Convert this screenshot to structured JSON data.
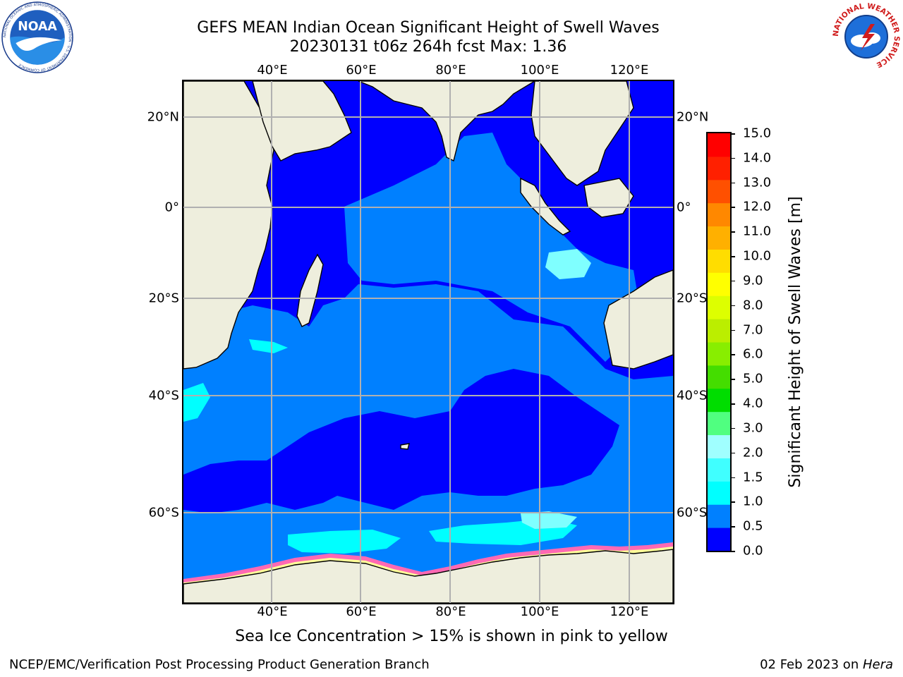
{
  "header": {
    "title_line1": "GEFS MEAN Indian Ocean Significant Height of Swell Waves",
    "title_line2": "20230131 t06z 264h fcst   Max: 1.36"
  },
  "logos": {
    "left": {
      "icon": "noaa-logo-icon",
      "text": "NOAA",
      "ring_text": "NATIONAL OCEANIC AND ATMOSPHERIC ADMINISTRATION · U.S. DEPARTMENT OF COMMERCE"
    },
    "right": {
      "icon": "nws-logo-icon",
      "ring_text": "NATIONAL WEATHER SERVICE"
    }
  },
  "map": {
    "lon_range": [
      20,
      130
    ],
    "lat_range": [
      -75,
      28
    ],
    "lon_ticks": [
      "40°E",
      "60°E",
      "80°E",
      "100°E",
      "120°E"
    ],
    "lat_ticks": [
      "20°N",
      "0°",
      "20°S",
      "40°S",
      "60°S"
    ],
    "grid": true,
    "colors": {
      "land": "#eeeedd",
      "ocean_low": "#0000ff",
      "ocean_mid": "#0080ff",
      "swell_cyan": "#00ffff",
      "swell_light": "#7fffff",
      "ice_pink": "#ff69b4",
      "ice_yellow": "#ffff99",
      "grid": "#b0b0b0"
    },
    "max_value": 1.36
  },
  "colorbar": {
    "title": "Significant Height of Swell Waves [m]",
    "levels": [
      "0.0",
      "0.5",
      "1.0",
      "1.5",
      "2.0",
      "3.0",
      "4.0",
      "5.0",
      "6.0",
      "7.0",
      "8.0",
      "9.0",
      "10.0",
      "11.0",
      "12.0",
      "13.0",
      "14.0",
      "15.0"
    ],
    "colors": [
      "#0000ff",
      "#0080ff",
      "#00ffff",
      "#40ffff",
      "#a0ffff",
      "#50ff80",
      "#00dd00",
      "#44dd00",
      "#88ee00",
      "#bbee00",
      "#ddff00",
      "#ffff00",
      "#ffdd00",
      "#ffb000",
      "#ff8800",
      "#ff5000",
      "#ff2000",
      "#ff0000"
    ]
  },
  "notes": {
    "ice": "Sea Ice Concentration > 15% is shown in pink to yellow"
  },
  "footer": {
    "left": "NCEP/EMC/Verification Post Processing Product Generation Branch",
    "right_date": "02 Feb 2023 on ",
    "right_host": "Hera"
  }
}
